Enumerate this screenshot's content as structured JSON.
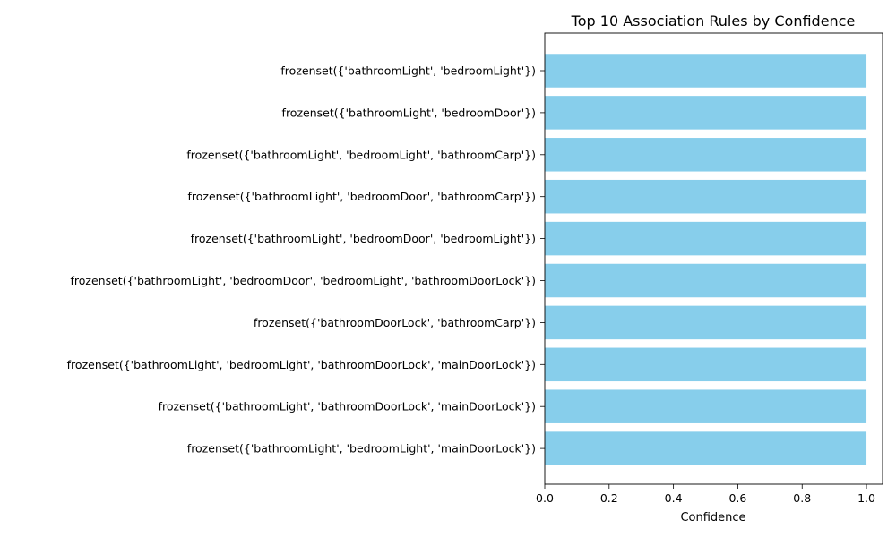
{
  "chart_data": {
    "type": "bar",
    "orientation": "horizontal",
    "title": "Top 10 Association Rules by Confidence",
    "xlabel": "Confidence",
    "ylabel": "",
    "xlim": [
      0.0,
      1.05
    ],
    "xticks": [
      "0.0",
      "0.2",
      "0.4",
      "0.6",
      "0.8",
      "1.0"
    ],
    "grid": false,
    "bar_color": "#87ceeb",
    "categories": [
      "frozenset({'bathroomLight', 'bedroomLight'})",
      "frozenset({'bathroomLight', 'bedroomDoor'})",
      "frozenset({'bathroomLight', 'bedroomLight', 'bathroomCarp'})",
      "frozenset({'bathroomLight', 'bedroomDoor', 'bathroomCarp'})",
      "frozenset({'bathroomLight', 'bedroomDoor', 'bedroomLight'})",
      "frozenset({'bathroomLight', 'bedroomDoor', 'bedroomLight', 'bathroomDoorLock'})",
      "frozenset({'bathroomDoorLock', 'bathroomCarp'})",
      "frozenset({'bathroomLight', 'bedroomLight', 'bathroomDoorLock', 'mainDoorLock'})",
      "frozenset({'bathroomLight', 'bathroomDoorLock', 'mainDoorLock'})",
      "frozenset({'bathroomLight', 'bedroomLight', 'mainDoorLock'})"
    ],
    "values": [
      1.0,
      1.0,
      1.0,
      1.0,
      1.0,
      1.0,
      1.0,
      1.0,
      1.0,
      1.0
    ]
  }
}
